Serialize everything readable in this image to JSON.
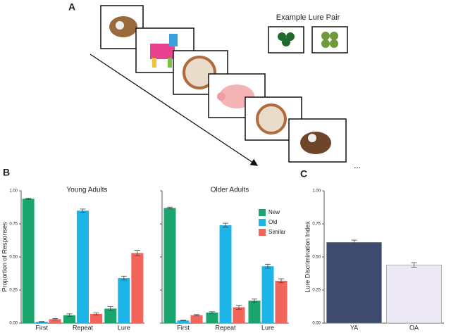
{
  "panel_a": {
    "label": "A",
    "caption": "Example Lure Pair",
    "ellipsis": "..."
  },
  "chart_data": [
    {
      "type": "bar",
      "panel_label": "B",
      "title": "Young Adults",
      "ylabel": "Proportion of Responses",
      "categories": [
        "First",
        "Repeat",
        "Lure"
      ],
      "series": [
        {
          "name": "New",
          "color": "#1ba56e",
          "values": [
            0.94,
            0.06,
            0.11
          ],
          "errors": [
            0.005,
            0.01,
            0.015
          ]
        },
        {
          "name": "Old",
          "color": "#1db4e8",
          "values": [
            0.01,
            0.85,
            0.34
          ],
          "errors": [
            0.002,
            0.012,
            0.015
          ]
        },
        {
          "name": "Similar",
          "color": "#f2655b",
          "values": [
            0.03,
            0.07,
            0.53
          ],
          "errors": [
            0.005,
            0.008,
            0.02
          ]
        }
      ],
      "ylim": [
        0,
        1
      ],
      "yticks": [
        {
          "value": 0,
          "label": "0.00"
        },
        {
          "value": 0.25,
          "label": "0.25"
        },
        {
          "value": 0.5,
          "label": "0.50"
        },
        {
          "value": 0.75,
          "label": "0.75"
        },
        {
          "value": 1,
          "label": "1.00"
        }
      ],
      "legend": false
    },
    {
      "type": "bar",
      "title": "Older Adults",
      "categories": [
        "First",
        "Repeat",
        "Lure"
      ],
      "series": [
        {
          "name": "New",
          "color": "#1ba56e",
          "values": [
            0.87,
            0.08,
            0.17
          ],
          "errors": [
            0.006,
            0.006,
            0.012
          ]
        },
        {
          "name": "Old",
          "color": "#1db4e8",
          "values": [
            0.02,
            0.74,
            0.43
          ],
          "errors": [
            0.002,
            0.015,
            0.015
          ]
        },
        {
          "name": "Similar",
          "color": "#f2655b",
          "values": [
            0.06,
            0.12,
            0.32
          ],
          "errors": [
            0.005,
            0.015,
            0.015
          ]
        }
      ],
      "ylim": [
        0,
        1
      ],
      "yticks": [
        0,
        0.25,
        0.5,
        0.75,
        1
      ],
      "legend": true
    },
    {
      "type": "bar",
      "panel_label": "C",
      "ylabel": "Lure Discrimination Index",
      "categories": [
        "YA",
        "OA"
      ],
      "series": [
        {
          "name": null,
          "colors": [
            "#3f4a6f",
            "#ece8f4"
          ],
          "values": [
            0.61,
            0.44
          ],
          "errors": [
            0.017,
            0.017
          ]
        }
      ],
      "ylim": [
        0,
        1
      ],
      "yticks": [
        {
          "value": 0,
          "label": "0.00"
        },
        {
          "value": 0.25,
          "label": "0.25"
        },
        {
          "value": 0.5,
          "label": "0.50"
        },
        {
          "value": 0.75,
          "label": "0.75"
        },
        {
          "value": 1,
          "label": "1.00"
        }
      ],
      "legend": false
    }
  ]
}
